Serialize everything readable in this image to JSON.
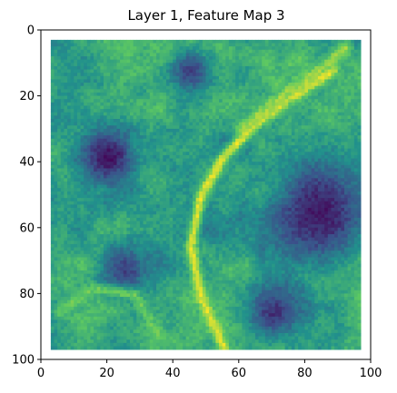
{
  "chart_data": {
    "type": "heatmap",
    "title": "Layer 1, Feature Map 3",
    "xlabel": "",
    "ylabel": "",
    "xlim": [
      0,
      100
    ],
    "ylim": [
      100,
      0
    ],
    "x_ticks": [
      "0",
      "20",
      "40",
      "60",
      "80",
      "100"
    ],
    "y_ticks": [
      "0",
      "20",
      "40",
      "60",
      "80",
      "100"
    ],
    "grid_size": [
      100,
      100
    ],
    "active_region": {
      "x": [
        3,
        97
      ],
      "y": [
        3,
        97
      ]
    },
    "colormap": "viridis",
    "colors": [
      "#440154",
      "#3b528b",
      "#21918c",
      "#5ec962",
      "#fde725"
    ],
    "description_regions": [
      {
        "name": "dark-blob-left",
        "cx": 20,
        "cy": 38,
        "r": 9,
        "value": 0.05
      },
      {
        "name": "dark-blob-right",
        "cx": 84,
        "cy": 55,
        "r": 16,
        "value": 0.08
      },
      {
        "name": "dark-blob-lower-left",
        "cx": 25,
        "cy": 72,
        "r": 8,
        "value": 0.2
      },
      {
        "name": "dark-blob-lower-right",
        "cx": 70,
        "cy": 85,
        "r": 9,
        "value": 0.15
      },
      {
        "name": "dark-blob-upper",
        "cx": 45,
        "cy": 12,
        "r": 7,
        "value": 0.2
      }
    ],
    "bright_ridges": [
      {
        "name": "ridge-diagonal",
        "points": [
          [
            55,
            96
          ],
          [
            48,
            80
          ],
          [
            45,
            65
          ],
          [
            48,
            50
          ],
          [
            55,
            38
          ],
          [
            65,
            28
          ],
          [
            75,
            20
          ],
          [
            88,
            12
          ]
        ],
        "value": 0.95
      },
      {
        "name": "ridge-upper-right",
        "points": [
          [
            60,
            30
          ],
          [
            70,
            22
          ],
          [
            80,
            15
          ],
          [
            92,
            5
          ]
        ],
        "value": 0.85
      },
      {
        "name": "ridge-left",
        "points": [
          [
            5,
            85
          ],
          [
            15,
            78
          ],
          [
            28,
            80
          ],
          [
            35,
            92
          ]
        ],
        "value": 0.75
      }
    ]
  }
}
